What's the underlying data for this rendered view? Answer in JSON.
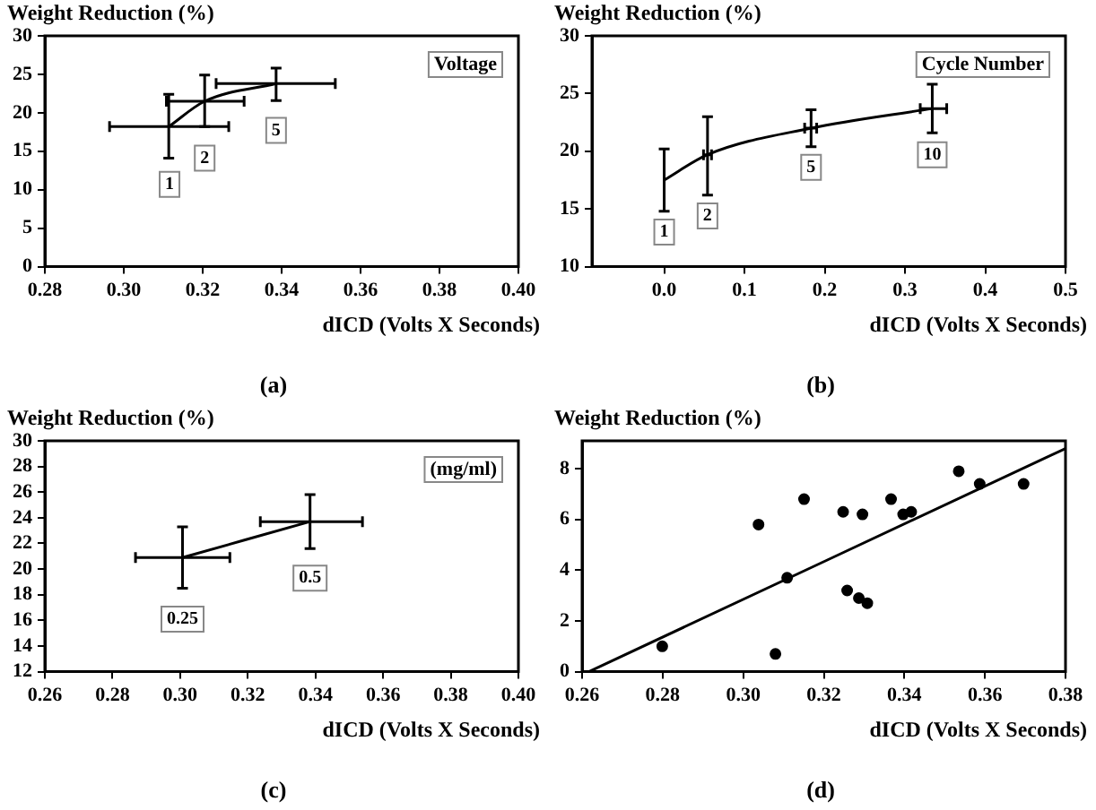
{
  "chart_data": [
    {
      "type": "line",
      "xlabel": "dICD (Volts X Seconds)",
      "ylabel": "Weight Reduction (%)",
      "legend_title": "Voltage",
      "xlim": [
        0.28,
        0.4
      ],
      "xticks": [
        {
          "value": 0.28,
          "label": "0.28"
        },
        {
          "value": 0.3,
          "label": "0.30"
        },
        {
          "value": 0.32,
          "label": "0.32"
        },
        {
          "value": 0.34,
          "label": "0.34"
        },
        {
          "value": 0.36,
          "label": "0.36"
        },
        {
          "value": 0.38,
          "label": "0.38"
        },
        {
          "value": 0.4,
          "label": "0.40"
        }
      ],
      "ylim": [
        0,
        30
      ],
      "yticks": [
        0,
        5,
        10,
        15,
        20,
        25,
        30
      ],
      "series": [
        {
          "color": "#000000",
          "x": [
            0.3114,
            0.3205,
            0.3386
          ],
          "values": [
            18.2,
            21.5,
            23.8
          ],
          "errors": [
            [
              14.1,
              22.4
            ],
            [
              18.2,
              24.9
            ],
            [
              21.6,
              25.8
            ]
          ],
          "xerrors": [
            [
              0.2964,
              0.3266
            ],
            [
              0.3108,
              0.3305
            ],
            [
              0.3234,
              0.3536
            ]
          ]
        }
      ],
      "annotations": [
        {
          "text": "1",
          "x": 0.3116,
          "y": 10.7
        },
        {
          "text": "2",
          "x": 0.3205,
          "y": 14.1
        },
        {
          "text": "5",
          "x": 0.3386,
          "y": 17.7
        },
        "(a)"
      ]
    },
    {
      "type": "line",
      "xlabel": "dICD (Volts X Seconds)",
      "ylabel": "Weight Reduction (%)",
      "legend_title": "Cycle Number",
      "xlim": [
        -0.09,
        0.5
      ],
      "xticks": [
        {
          "value": 0,
          "label": "0.0"
        },
        {
          "value": 0.1,
          "label": "0.1"
        },
        {
          "value": 0.2,
          "label": "0.2"
        },
        {
          "value": 0.3,
          "label": "0.3"
        },
        {
          "value": 0.4,
          "label": "0.4"
        },
        {
          "value": 0.5,
          "label": "0.5"
        }
      ],
      "ylim": [
        10,
        30
      ],
      "yticks": [
        10,
        15,
        20,
        25,
        30
      ],
      "series": [
        {
          "color": "#000000",
          "x": [
            0.0,
            0.054,
            0.183,
            0.334
          ],
          "values": [
            17.5,
            19.7,
            22.0,
            23.7
          ],
          "errors": [
            [
              14.8,
              20.2
            ],
            [
              16.2,
              23.0
            ],
            [
              20.4,
              23.6
            ],
            [
              21.6,
              25.8
            ]
          ],
          "xerrors": [
            null,
            [
              0.049,
              0.059
            ],
            [
              0.175,
              0.19
            ],
            [
              0.319,
              0.352
            ]
          ]
        }
      ],
      "annotations": [
        {
          "text": "1",
          "x": 0.0,
          "y": 13.0
        },
        {
          "text": "2",
          "x": 0.054,
          "y": 14.4
        },
        {
          "text": "5",
          "x": 0.183,
          "y": 18.6
        },
        {
          "text": "10",
          "x": 0.334,
          "y": 19.7
        },
        "(b)"
      ]
    },
    {
      "type": "line",
      "xlabel": "dICD (Volts X Seconds)",
      "ylabel": "Weight Reduction (%)",
      "legend_title": "(mg/ml)",
      "xlim": [
        0.26,
        0.4
      ],
      "xticks": [
        {
          "value": 0.26,
          "label": "0.26"
        },
        {
          "value": 0.28,
          "label": "0.28"
        },
        {
          "value": 0.3,
          "label": "0.30"
        },
        {
          "value": 0.32,
          "label": "0.32"
        },
        {
          "value": 0.34,
          "label": "0.34"
        },
        {
          "value": 0.36,
          "label": "0.36"
        },
        {
          "value": 0.38,
          "label": "0.38"
        },
        {
          "value": 0.4,
          "label": "0.40"
        }
      ],
      "ylim": [
        12,
        30
      ],
      "yticks": [
        12,
        14,
        16,
        18,
        20,
        22,
        24,
        26,
        28,
        30
      ],
      "series": [
        {
          "color": "#000000",
          "x": [
            0.3007,
            0.3384
          ],
          "values": [
            20.9,
            23.7
          ],
          "errors": [
            [
              18.5,
              23.3
            ],
            [
              21.6,
              25.8
            ]
          ],
          "xerrors": [
            [
              0.2868,
              0.3147
            ],
            [
              0.3237,
              0.3539
            ]
          ]
        }
      ],
      "annotations": [
        {
          "text": "0.25",
          "x": 0.3007,
          "y": 16.1
        },
        {
          "text": "0.5",
          "x": 0.3384,
          "y": 19.3
        },
        "(c)"
      ]
    },
    {
      "type": "scatter",
      "xlabel": "dICD (Volts X Seconds)",
      "ylabel": "Weight Reduction (%)",
      "xlim": [
        0.26,
        0.38
      ],
      "xticks": [
        {
          "value": 0.26,
          "label": "0.26"
        },
        {
          "value": 0.28,
          "label": "0.28"
        },
        {
          "value": 0.3,
          "label": "0.30"
        },
        {
          "value": 0.32,
          "label": "0.32"
        },
        {
          "value": 0.34,
          "label": "0.34"
        },
        {
          "value": 0.36,
          "label": "0.36"
        },
        {
          "value": 0.38,
          "label": "0.38"
        }
      ],
      "ylim": [
        0,
        9.1
      ],
      "yticks": [
        0,
        2,
        4,
        6,
        8
      ],
      "series": [
        {
          "color": "#000000",
          "marker": "circle",
          "x": [
            0.2799,
            0.3038,
            0.308,
            0.3109,
            0.3151,
            0.3248,
            0.3258,
            0.3296,
            0.3287,
            0.3308,
            0.3367,
            0.3397,
            0.3417,
            0.3535,
            0.3587,
            0.3696
          ],
          "values": [
            1.0,
            5.8,
            0.7,
            3.7,
            6.8,
            6.3,
            3.2,
            6.2,
            2.9,
            2.7,
            6.8,
            6.2,
            6.3,
            7.9,
            7.4,
            7.4
          ]
        },
        {
          "type": "line",
          "color": "#000000",
          "x": [
            0.2617,
            0.38
          ],
          "values": [
            0,
            8.8
          ]
        }
      ],
      "annotations": [
        "(d)"
      ]
    }
  ]
}
